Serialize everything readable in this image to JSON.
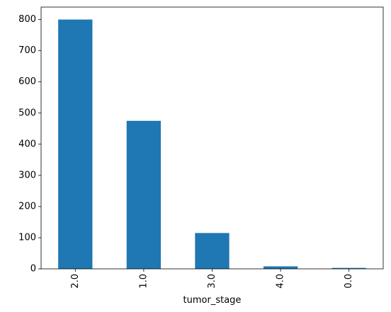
{
  "chart_data": {
    "type": "bar",
    "categories": [
      "2.0",
      "1.0",
      "3.0",
      "4.0",
      "0.0"
    ],
    "values": [
      800,
      475,
      115,
      8,
      3
    ],
    "title": "",
    "xlabel": "tumor_stage",
    "ylabel": "",
    "ylim": [
      0,
      840
    ],
    "yticks": [
      0,
      100,
      200,
      300,
      400,
      500,
      600,
      700,
      800
    ],
    "ytick_labels": [
      "0",
      "100",
      "200",
      "300",
      "400",
      "500",
      "600",
      "700",
      "800"
    ],
    "grid": false,
    "legend": "none",
    "colors": {
      "bar": "#1f77b4",
      "axis": "#000000"
    }
  }
}
